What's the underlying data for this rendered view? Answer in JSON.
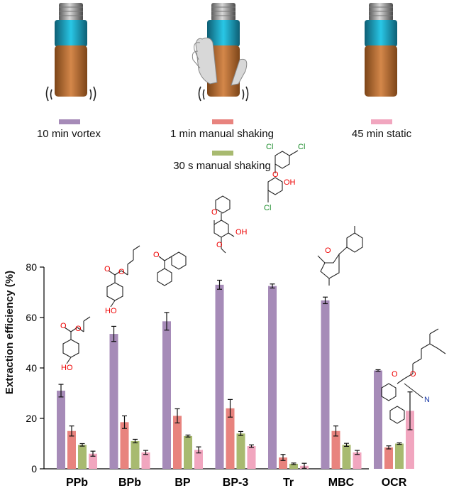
{
  "legend": [
    {
      "label": "10 min vortex",
      "color": "#a68bb8"
    },
    {
      "label": "1 min manual shaking",
      "color": "#e8837e"
    },
    {
      "label": "45 min static",
      "color": "#f1a6bf"
    },
    {
      "label": "30 s manual shaking",
      "color": "#a8ba70"
    }
  ],
  "chart_data": {
    "type": "bar",
    "ylabel": "Extraction efficiency (%)",
    "ylim": [
      0,
      80
    ],
    "yticks": [
      0,
      20,
      40,
      60,
      80
    ],
    "categories": [
      "PPb",
      "BPb",
      "BP",
      "BP-3",
      "Tr",
      "MBC",
      "OCR"
    ],
    "series": [
      {
        "name": "10 min vortex",
        "color": "#a68bb8",
        "values": [
          31,
          53.5,
          58.5,
          73,
          72.5,
          66.8,
          39
        ],
        "errors": [
          2.5,
          3,
          3.5,
          1.8,
          0.8,
          1.3,
          0.3
        ]
      },
      {
        "name": "1 min manual shaking",
        "color": "#e8837e",
        "values": [
          15,
          18.5,
          21,
          24,
          4.5,
          15,
          8.5
        ],
        "errors": [
          2,
          2.5,
          2.8,
          3.5,
          1.2,
          2,
          0.6
        ]
      },
      {
        "name": "30 s manual shaking",
        "color": "#a8ba70",
        "values": [
          9.5,
          11,
          13,
          14,
          2,
          9.5,
          10
        ],
        "errors": [
          0.5,
          0.7,
          0.4,
          0.8,
          0.3,
          0.6,
          0.3
        ]
      },
      {
        "name": "45 min static",
        "color": "#f1a6bf",
        "values": [
          6,
          6.5,
          7.5,
          9,
          1.2,
          6.5,
          23
        ],
        "errors": [
          1,
          0.8,
          1.2,
          0.5,
          1,
          0.8,
          7.5
        ]
      }
    ]
  },
  "molecule_labels": {
    "hydroxyl": "HO",
    "hydroxyl2": "OH",
    "oxygen": "O",
    "chlorine": "Cl",
    "nitrogen": "N"
  }
}
